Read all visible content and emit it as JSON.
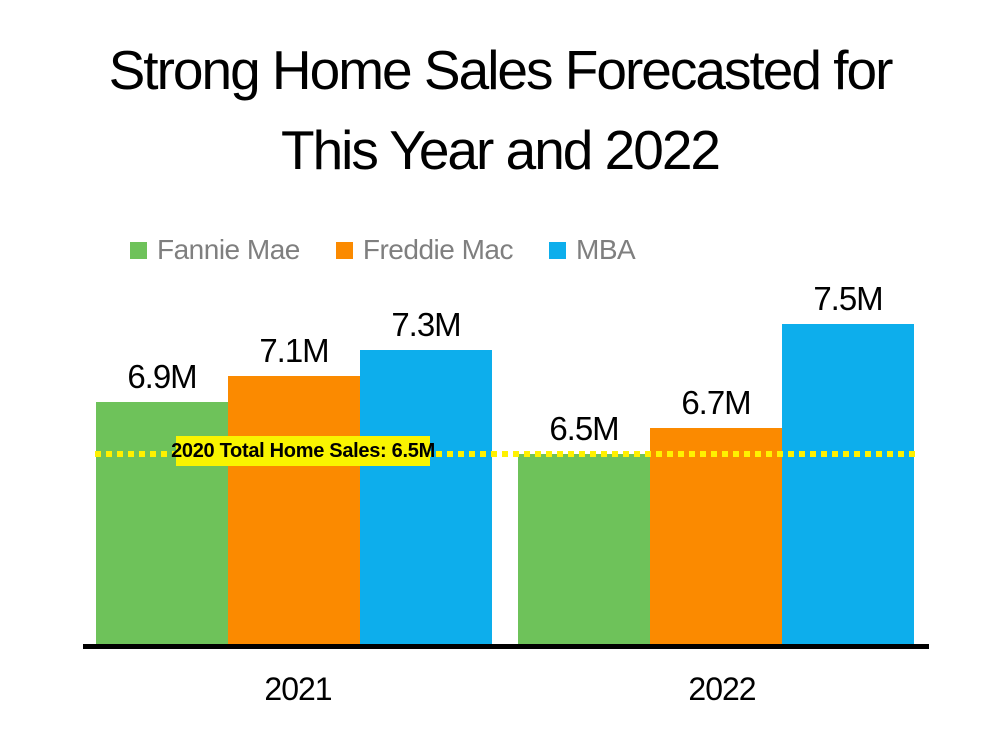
{
  "title": {
    "line1": "Strong Home Sales Forecasted for",
    "line2": "This Year and 2022"
  },
  "legend": [
    {
      "label": "Fannie Mae",
      "color": "#6EC25A"
    },
    {
      "label": "Freddie Mac",
      "color": "#FB8A00"
    },
    {
      "label": "MBA",
      "color": "#0DAEEC"
    }
  ],
  "chart_data": {
    "type": "bar",
    "title": "Strong Home Sales Forecasted for This Year and 2022",
    "categories": [
      "2021",
      "2022"
    ],
    "series": [
      {
        "name": "Fannie Mae",
        "color": "#6EC25A",
        "values": [
          6.9,
          6.5
        ],
        "labels": [
          "6.9M",
          "6.5M"
        ]
      },
      {
        "name": "Freddie Mac",
        "color": "#FB8A00",
        "values": [
          7.1,
          6.7
        ],
        "labels": [
          "7.1M",
          "6.7M"
        ]
      },
      {
        "name": "MBA",
        "color": "#0DAEEC",
        "values": [
          7.3,
          7.5
        ],
        "labels": [
          "7.3M",
          "7.5M"
        ]
      }
    ],
    "unit": "millions of home sales",
    "value_suffix": "M",
    "ylim": [
      5.0,
      7.9
    ],
    "grid": false,
    "legend_position": "top",
    "axis_color": "#000000",
    "reference_line": {
      "label": "2020 Total Home Sales: 6.5M",
      "value": 6.5,
      "style": "dotted",
      "line_color": "#FFF100",
      "box_color": "#F9F400",
      "text_color": "#000000"
    }
  }
}
